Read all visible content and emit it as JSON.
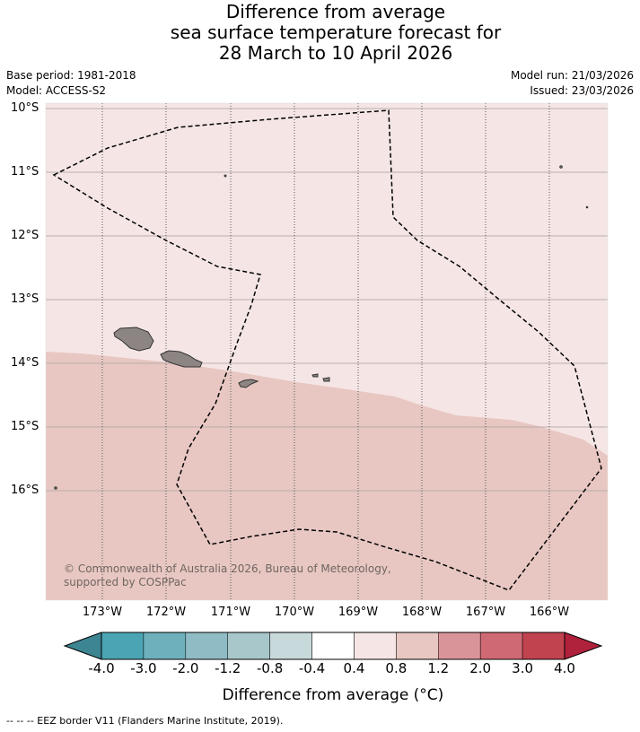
{
  "title": {
    "line1": "Difference from average",
    "line2": "sea surface temperature forecast for",
    "line3": "28 March to 10 April 2026"
  },
  "meta": {
    "base_period": "Base period: 1981-2018",
    "model": "Model: ACCESS-S2",
    "model_run": "Model run: 21/03/2026",
    "issued": "Issued: 23/03/2026"
  },
  "map": {
    "latitude_labels": [
      "10°S",
      "11°S",
      "12°S",
      "13°S",
      "14°S",
      "15°S",
      "16°S"
    ],
    "longitude_labels": [
      "173°W",
      "172°W",
      "171°W",
      "170°W",
      "169°W",
      "168°W",
      "167°W",
      "166°W"
    ],
    "region": "Samoa / American Samoa",
    "ocean_anomaly_colors": {
      "north": "#f5e6e5",
      "south": "#e8c7c2"
    },
    "land_color": "#8c8584",
    "copyright": "© Commonwealth of Australia 2026, Bureau of Meteorology, supported by COSPPac"
  },
  "colorbar": {
    "ticks": [
      "-4.0",
      "-3.0",
      "-2.0",
      "-1.2",
      "-0.8",
      "-0.4",
      "0.4",
      "0.8",
      "1.2",
      "2.0",
      "3.0",
      "4.0"
    ],
    "colors": {
      "under": "#3d8592",
      "bins": [
        "#4ba4b3",
        "#6fb0bd",
        "#8fbbc4",
        "#a8c7cb",
        "#c8d9db",
        "#ffffff",
        "#f5e6e5",
        "#e8c7c2",
        "#d9949a",
        "#cf6a74",
        "#c1434f"
      ],
      "over": "#b0213c"
    },
    "label": "Difference from average (°C)"
  },
  "legend": {
    "eez_border": "--  --  -- EEZ border V11 (Flanders Marine Institute, 2019)."
  }
}
